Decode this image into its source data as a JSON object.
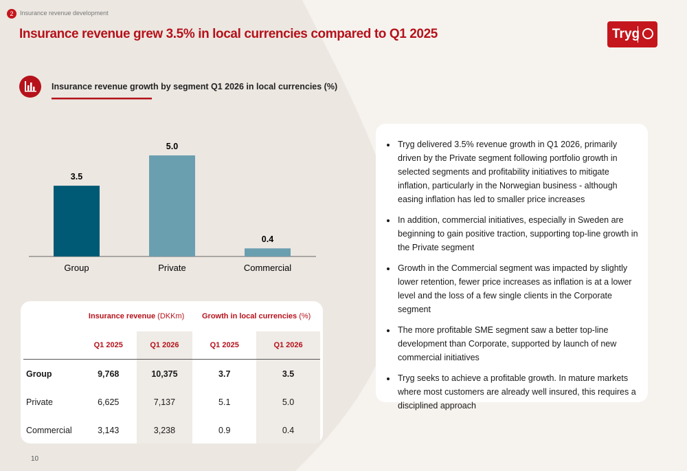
{
  "header": {
    "section_number": "2",
    "section": "Insurance revenue development",
    "title": "Insurance revenue grew 3.5% in local currencies compared to Q1 2025",
    "logo": "Tryg"
  },
  "chart_data": {
    "type": "bar",
    "title": "Insurance revenue growth by segment Q1 2026 in local currencies (%)",
    "categories": [
      "Group",
      "Private",
      "Commercial"
    ],
    "values": [
      3.5,
      5.0,
      0.4
    ],
    "value_labels": [
      "3.5",
      "5.0",
      "0.4"
    ],
    "colors": [
      "#005a75",
      "#6a9fb0",
      "#6a9fb0"
    ]
  },
  "table": {
    "group_headers": [
      {
        "bold": "Insurance revenue",
        "unit": "(DKKm)"
      },
      {
        "bold": "Growth in local currencies",
        "unit": "(%)"
      }
    ],
    "columns": [
      "Q1 2025",
      "Q1 2026",
      "Q1 2025",
      "Q1 2026"
    ],
    "rows": [
      [
        "Group",
        "9,768",
        "10,375",
        "3.7",
        "3.5"
      ],
      [
        "Private",
        "6,625",
        "7,137",
        "5.1",
        "5.0"
      ],
      [
        "Commercial",
        "3,143",
        "3,238",
        "0.9",
        "0.4"
      ]
    ]
  },
  "bullets": [
    "Tryg delivered 3.5% revenue growth in Q1 2026, primarily driven by the Private segment following portfolio growth in selected segments and profitability initiatives to mitigate inflation, particularly in the Norwegian business - although easing inflation has led to smaller price increases",
    "In addition, commercial initiatives, especially in Sweden are beginning to gain positive traction, supporting top-line growth in the Private segment",
    "Growth in the Commercial segment was impacted by slightly lower retention, fewer price increases as inflation is at a lower level and the loss of a few single clients in the Corporate segment",
    "The more profitable SME segment saw a better top-line development than Corporate, supported by launch of new commercial initiatives",
    "Tryg seeks to achieve a profitable growth. In mature markets where most customers are already well insured, this requires a disciplined approach"
  ],
  "page_number": "10"
}
